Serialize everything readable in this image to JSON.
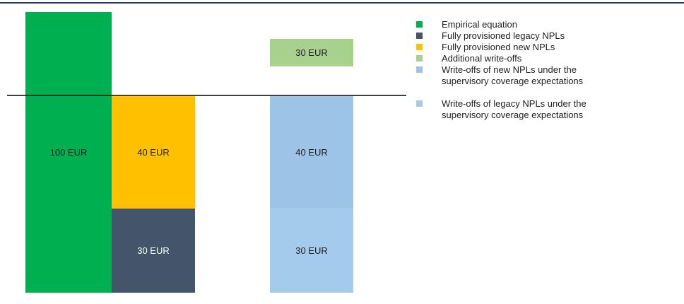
{
  "chart_data": {
    "type": "bar",
    "categories": [
      null,
      null,
      null
    ],
    "series": [
      {
        "name": "Empirical equation",
        "color": "#00b050",
        "values": [
          100,
          null,
          null
        ],
        "value_labels": [
          "100 EUR",
          null,
          null
        ]
      },
      {
        "name": "Fully provisioned legacy NPLs",
        "color": "#44546a",
        "values": [
          null,
          30,
          null
        ],
        "value_labels": [
          null,
          "30 EUR",
          null
        ]
      },
      {
        "name": "Fully provisioned new NPLs",
        "color": "#ffc000",
        "values": [
          null,
          40,
          null
        ],
        "value_labels": [
          null,
          "40 EUR",
          null
        ]
      },
      {
        "name": "Additional write-offs",
        "color": "#a9d18e",
        "values": [
          null,
          null,
          30
        ],
        "value_labels": [
          null,
          null,
          "30 EUR"
        ]
      },
      {
        "name": "Write-offs of new NPLs under the supervisory coverage expectations",
        "color": "#9dc3e6",
        "values": [
          null,
          null,
          40
        ],
        "value_labels": [
          null,
          null,
          "40 EUR"
        ]
      },
      {
        "name": "Write-offs of legacy NPLs under the supervisory coverage expectations",
        "color": "#a4caec",
        "values": [
          null,
          null,
          30
        ],
        "value_labels": [
          null,
          null,
          "30 EUR"
        ]
      }
    ]
  }
}
